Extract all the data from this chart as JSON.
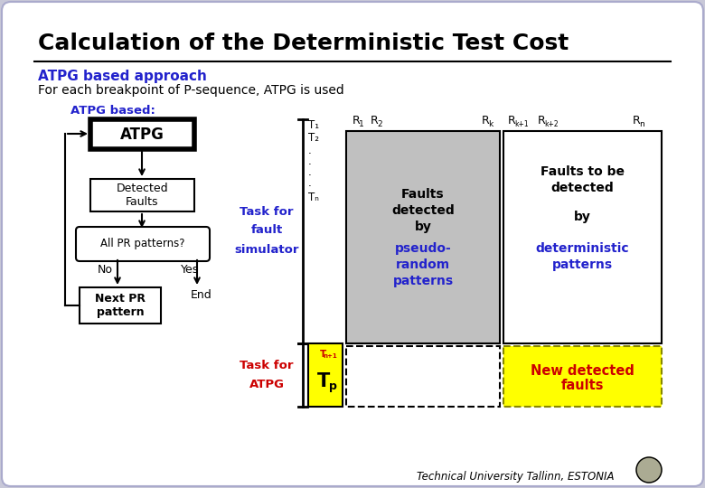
{
  "title": "Calculation of the Deterministic Test Cost",
  "subtitle_blue": "ATPG based approach",
  "subtitle_black": "For each breakpoint of P-sequence, ATPG is used",
  "flowchart_label": "ATPG based:",
  "atpg_box_label": "ATPG",
  "detected_faults_label": "Detected\nFaults",
  "all_pr_label": "All PR patterns?",
  "no_label": "No",
  "yes_label": "Yes",
  "end_label": "End",
  "next_pr_label": "Next PR\npattern",
  "task_fault_sim_label": "Task for\nfault\nsimulator",
  "task_atpg_label": "Task for\nATPG",
  "t1": "T",
  "t1sub": "1",
  "t2": "T",
  "t2sub": "2",
  "tn": "T",
  "tnsub": "n",
  "tn1_sup": "T",
  "tn1_sub": "n+1",
  "tp_sup": "T",
  "tp_sub": "p",
  "col1_r1": "R",
  "col1_r1sub": "1",
  "col1_r2": "R",
  "col1_r2sub": "2",
  "col1_rk": "R",
  "col1_rksub": "k",
  "col2_rk1": "R",
  "col2_rk1sub": "k+1",
  "col2_rk2": "R",
  "col2_rk2sub": "k+2",
  "col2_rn": "R",
  "col2_rnsub": "n",
  "gray_box_line1": "Faults",
  "gray_box_line2": "detected",
  "gray_box_line3": "by",
  "gray_box_line4": "pseudo-",
  "gray_box_line5": "random",
  "gray_box_line6": "patterns",
  "white_box_line1": "Faults to be",
  "white_box_line2": "detected",
  "white_box_line3": "by",
  "white_box_line4": "deterministic",
  "white_box_line5": "patterns",
  "new_faults_line1": "New detected",
  "new_faults_line2": "faults",
  "footer": "Technical University Tallinn, ESTONIA",
  "bg_color": "#c8c8d8",
  "slide_bg": "#ffffff",
  "blue_color": "#2222cc",
  "red_color": "#cc0000",
  "yellow_color": "#ffff00",
  "gray_color": "#c0c0c0"
}
